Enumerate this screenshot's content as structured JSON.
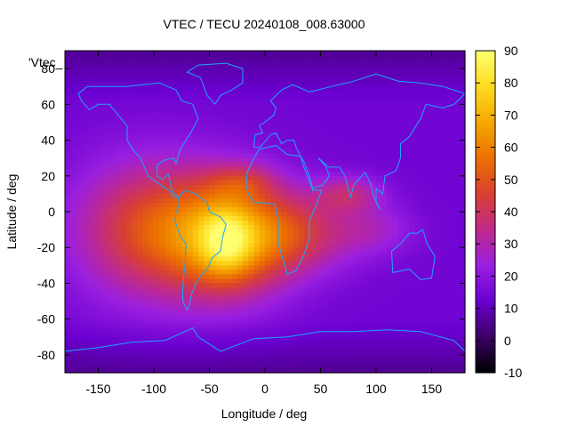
{
  "chart_data": {
    "type": "heatmap",
    "title": "VTEC / TECU 20240108_008.63000",
    "xlabel": "Longitude / deg",
    "ylabel": "Latitude / deg",
    "legend_entry": "'Vtec_",
    "xlim": [
      -180,
      180
    ],
    "ylim": [
      -90,
      90
    ],
    "xticks": [
      -150,
      -100,
      -50,
      0,
      50,
      100,
      150
    ],
    "yticks": [
      -80,
      -60,
      -40,
      -20,
      0,
      20,
      40,
      60,
      80
    ],
    "colorbar": {
      "range": [
        -10,
        90
      ],
      "ticks": [
        -10,
        0,
        10,
        20,
        30,
        40,
        50,
        60,
        70,
        80,
        90
      ],
      "colors": [
        "#000000",
        "#3c0064",
        "#6a00d0",
        "#9a1fe0",
        "#c02a8a",
        "#d84030",
        "#ec7000",
        "#f5a800",
        "#ffdc20",
        "#ffff70"
      ]
    },
    "field": {
      "background_tecu": 14,
      "polar_tecu": 6,
      "blobs": [
        {
          "lon": -100,
          "lat": -10,
          "rlon": 70,
          "rlat": 38,
          "amp": 34
        },
        {
          "lon": -30,
          "lat": -15,
          "rlon": 55,
          "rlat": 32,
          "amp": 42
        },
        {
          "lon": -35,
          "lat": -17,
          "rlon": 22,
          "rlat": 18,
          "amp": 22
        },
        {
          "lon": -20,
          "lat": 17,
          "rlon": 30,
          "rlat": 10,
          "amp": 14
        },
        {
          "lon": 30,
          "lat": -12,
          "rlon": 55,
          "rlat": 22,
          "amp": 22
        },
        {
          "lon": 75,
          "lat": 10,
          "rlon": 30,
          "rlat": 10,
          "amp": 18
        },
        {
          "lon": 100,
          "lat": -10,
          "rlon": 35,
          "rlat": 14,
          "amp": 10
        }
      ]
    },
    "coastlines": [
      {
        "name": "north-america",
        "points": [
          [
            -168,
            66
          ],
          [
            -160,
            70
          ],
          [
            -140,
            70
          ],
          [
            -125,
            70
          ],
          [
            -95,
            72
          ],
          [
            -80,
            68
          ],
          [
            -75,
            62
          ],
          [
            -65,
            60
          ],
          [
            -60,
            52
          ],
          [
            -66,
            45
          ],
          [
            -70,
            41
          ],
          [
            -76,
            35
          ],
          [
            -80,
            27
          ],
          [
            -82,
            30
          ],
          [
            -90,
            29
          ],
          [
            -97,
            26
          ],
          [
            -97,
            20
          ],
          [
            -92,
            18
          ],
          [
            -87,
            21
          ],
          [
            -83,
            11
          ],
          [
            -78,
            8
          ],
          [
            -82,
            8
          ],
          [
            -86,
            12
          ],
          [
            -92,
            14
          ],
          [
            -105,
            20
          ],
          [
            -112,
            30
          ],
          [
            -118,
            34
          ],
          [
            -124,
            40
          ],
          [
            -124,
            48
          ],
          [
            -132,
            54
          ],
          [
            -140,
            60
          ],
          [
            -150,
            60
          ],
          [
            -158,
            57
          ],
          [
            -165,
            62
          ],
          [
            -168,
            66
          ]
        ]
      },
      {
        "name": "greenland",
        "points": [
          [
            -45,
            60
          ],
          [
            -52,
            65
          ],
          [
            -58,
            75
          ],
          [
            -70,
            78
          ],
          [
            -60,
            82
          ],
          [
            -35,
            83
          ],
          [
            -20,
            80
          ],
          [
            -20,
            72
          ],
          [
            -30,
            68
          ],
          [
            -40,
            65
          ],
          [
            -45,
            60
          ]
        ]
      },
      {
        "name": "south-america",
        "points": [
          [
            -78,
            8
          ],
          [
            -72,
            12
          ],
          [
            -62,
            10
          ],
          [
            -52,
            5
          ],
          [
            -50,
            0
          ],
          [
            -40,
            -3
          ],
          [
            -35,
            -7
          ],
          [
            -38,
            -14
          ],
          [
            -40,
            -22
          ],
          [
            -48,
            -26
          ],
          [
            -50,
            -30
          ],
          [
            -58,
            -36
          ],
          [
            -62,
            -40
          ],
          [
            -66,
            -46
          ],
          [
            -68,
            -52
          ],
          [
            -70,
            -55
          ],
          [
            -74,
            -50
          ],
          [
            -74,
            -42
          ],
          [
            -72,
            -30
          ],
          [
            -71,
            -18
          ],
          [
            -76,
            -14
          ],
          [
            -81,
            -5
          ],
          [
            -80,
            0
          ],
          [
            -77,
            4
          ],
          [
            -78,
            8
          ]
        ]
      },
      {
        "name": "africa",
        "points": [
          [
            -17,
            15
          ],
          [
            -16,
            22
          ],
          [
            -10,
            30
          ],
          [
            -5,
            35
          ],
          [
            10,
            37
          ],
          [
            20,
            32
          ],
          [
            32,
            31
          ],
          [
            35,
            25
          ],
          [
            43,
            12
          ],
          [
            51,
            12
          ],
          [
            45,
            2
          ],
          [
            40,
            -5
          ],
          [
            40,
            -15
          ],
          [
            35,
            -24
          ],
          [
            28,
            -33
          ],
          [
            20,
            -35
          ],
          [
            18,
            -30
          ],
          [
            12,
            -18
          ],
          [
            12,
            -5
          ],
          [
            9,
            4
          ],
          [
            0,
            5
          ],
          [
            -10,
            5
          ],
          [
            -15,
            10
          ],
          [
            -17,
            15
          ]
        ]
      },
      {
        "name": "eurasia",
        "points": [
          [
            -10,
            36
          ],
          [
            -9,
            43
          ],
          [
            -2,
            44
          ],
          [
            -5,
            48
          ],
          [
            2,
            51
          ],
          [
            8,
            54
          ],
          [
            10,
            58
          ],
          [
            5,
            62
          ],
          [
            15,
            68
          ],
          [
            25,
            71
          ],
          [
            40,
            67
          ],
          [
            60,
            70
          ],
          [
            80,
            73
          ],
          [
            100,
            77
          ],
          [
            120,
            73
          ],
          [
            140,
            72
          ],
          [
            160,
            70
          ],
          [
            180,
            66
          ],
          [
            170,
            60
          ],
          [
            160,
            58
          ],
          [
            145,
            60
          ],
          [
            140,
            52
          ],
          [
            130,
            42
          ],
          [
            122,
            38
          ],
          [
            122,
            30
          ],
          [
            118,
            23
          ],
          [
            108,
            20
          ],
          [
            106,
            10
          ],
          [
            100,
            13
          ],
          [
            100,
            5
          ],
          [
            104,
            1
          ],
          [
            98,
            8
          ],
          [
            95,
            16
          ],
          [
            90,
            22
          ],
          [
            80,
            15
          ],
          [
            77,
            8
          ],
          [
            72,
            20
          ],
          [
            67,
            25
          ],
          [
            57,
            25
          ],
          [
            50,
            29
          ],
          [
            48,
            30
          ],
          [
            55,
            25
          ],
          [
            58,
            20
          ],
          [
            52,
            15
          ],
          [
            43,
            13
          ],
          [
            40,
            20
          ],
          [
            35,
            28
          ],
          [
            32,
            31
          ],
          [
            28,
            36
          ],
          [
            26,
            40
          ],
          [
            20,
            40
          ],
          [
            15,
            38
          ],
          [
            10,
            44
          ],
          [
            5,
            43
          ],
          [
            0,
            39
          ],
          [
            -5,
            36
          ],
          [
            -10,
            36
          ]
        ]
      },
      {
        "name": "australia",
        "points": [
          [
            114,
            -22
          ],
          [
            122,
            -18
          ],
          [
            130,
            -12
          ],
          [
            137,
            -12
          ],
          [
            142,
            -10
          ],
          [
            146,
            -18
          ],
          [
            153,
            -25
          ],
          [
            150,
            -37
          ],
          [
            140,
            -38
          ],
          [
            130,
            -32
          ],
          [
            115,
            -34
          ],
          [
            114,
            -22
          ]
        ]
      },
      {
        "name": "antarctica",
        "points": [
          [
            -180,
            -78
          ],
          [
            -150,
            -76
          ],
          [
            -120,
            -73
          ],
          [
            -90,
            -72
          ],
          [
            -65,
            -65
          ],
          [
            -60,
            -70
          ],
          [
            -40,
            -78
          ],
          [
            -10,
            -71
          ],
          [
            20,
            -70
          ],
          [
            50,
            -67
          ],
          [
            80,
            -67
          ],
          [
            110,
            -66
          ],
          [
            140,
            -67
          ],
          [
            170,
            -72
          ],
          [
            180,
            -78
          ]
        ]
      }
    ]
  }
}
